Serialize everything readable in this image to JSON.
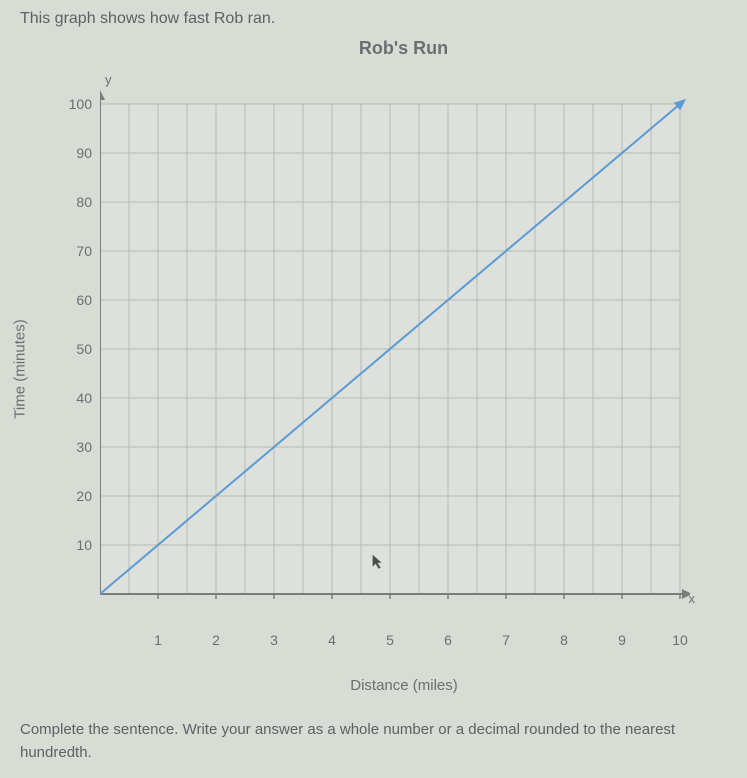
{
  "intro_text": "This graph shows how fast Rob ran.",
  "chart": {
    "title": "Rob's Run",
    "type": "line",
    "x_axis": {
      "label": "Distance (miles)",
      "letter": "x",
      "min": 0,
      "max": 10,
      "ticks": [
        1,
        2,
        3,
        4,
        5,
        6,
        7,
        8,
        9,
        10
      ]
    },
    "y_axis": {
      "label": "Time (minutes)",
      "letter": "y",
      "min": 0,
      "max": 100,
      "ticks": [
        10,
        20,
        30,
        40,
        50,
        60,
        70,
        80,
        90,
        100
      ]
    },
    "line": {
      "start": [
        0,
        0
      ],
      "end": [
        10,
        100
      ],
      "color": "#5b9bd5",
      "width": 2
    },
    "grid_color": "#b8bab6",
    "axis_color": "#7a7e7a",
    "background_color": "#dde0db",
    "label_fontsize": 15,
    "tick_fontsize": 14
  },
  "footer_text": "Complete the sentence. Write your answer as a whole number or a decimal rounded to the nearest hundredth."
}
